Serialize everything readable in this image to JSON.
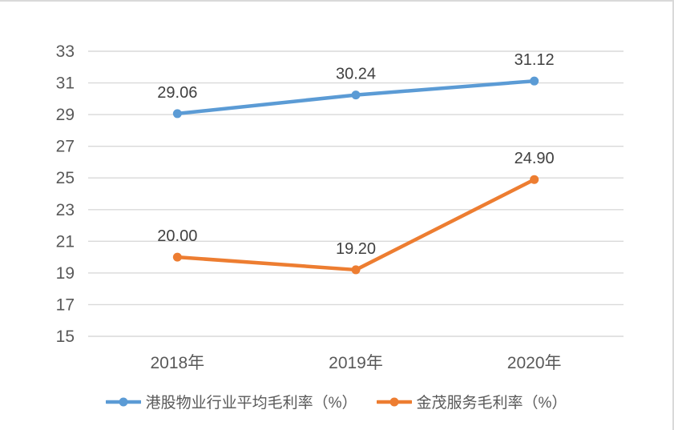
{
  "chart_data": {
    "type": "line",
    "categories": [
      "2018年",
      "2019年",
      "2020年"
    ],
    "series": [
      {
        "name": "港股物业行业平均毛利率（%）",
        "values": [
          29.06,
          30.24,
          31.12
        ],
        "labels": [
          "29.06",
          "30.24",
          "31.12"
        ],
        "color": "#5b9bd5"
      },
      {
        "name": "金茂服务毛利率（%）",
        "values": [
          20.0,
          19.2,
          24.9
        ],
        "labels": [
          "20.00",
          "19.20",
          "24.90"
        ],
        "color": "#ed7d31"
      }
    ],
    "title": "",
    "xlabel": "",
    "ylabel": "",
    "ylim": [
      15,
      33
    ],
    "yticks": [
      15,
      17,
      19,
      21,
      23,
      25,
      27,
      29,
      31,
      33
    ],
    "grid": true,
    "legend_position": "bottom",
    "style": {
      "gridline_color": "#d9d9d9",
      "frame_border_color": "#d9d9d9",
      "axis_text_color": "#595959",
      "data_label_color": "#404040",
      "background_color": "#ffffff"
    }
  }
}
